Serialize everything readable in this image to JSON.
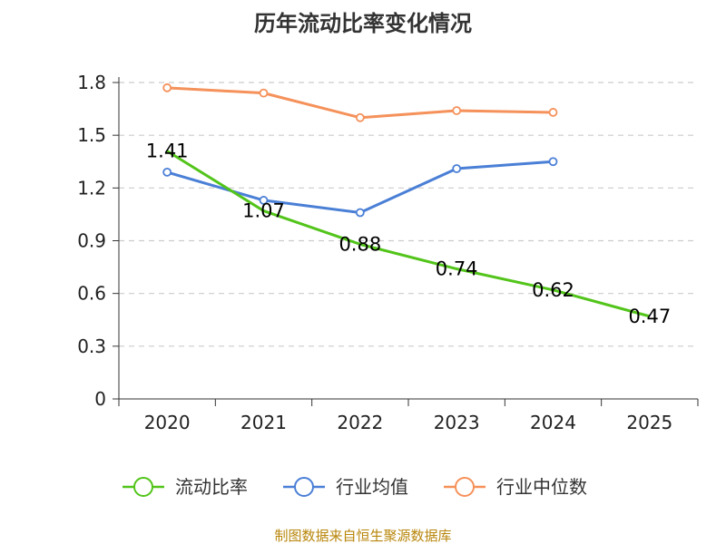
{
  "chart_data": {
    "type": "line",
    "title": "历年流动比率变化情况",
    "categories": [
      "2020",
      "2021",
      "2022",
      "2023",
      "2024",
      "2025"
    ],
    "y_ticks": [
      "0",
      "0.3",
      "0.6",
      "0.9",
      "1.2",
      "1.5",
      "1.8"
    ],
    "ylim": [
      0,
      1.8
    ],
    "grid": true,
    "legend_position": "bottom",
    "series": [
      {
        "name": "流动比率",
        "color": "#52c41a",
        "values": [
          1.41,
          1.07,
          0.88,
          0.74,
          0.62,
          0.47
        ],
        "value_labels": [
          "1.41",
          "1.07",
          "0.88",
          "0.74",
          "0.62",
          "0.47"
        ],
        "show_markers": false
      },
      {
        "name": "行业均值",
        "color": "#4a7fd6",
        "values": [
          1.29,
          1.13,
          1.06,
          1.31,
          1.35,
          null
        ],
        "show_markers": true
      },
      {
        "name": "行业中位数",
        "color": "#f5915a",
        "values": [
          1.77,
          1.74,
          1.6,
          1.64,
          1.63,
          null
        ],
        "show_markers": true
      }
    ],
    "source": "制图数据来自恒生聚源数据库"
  }
}
